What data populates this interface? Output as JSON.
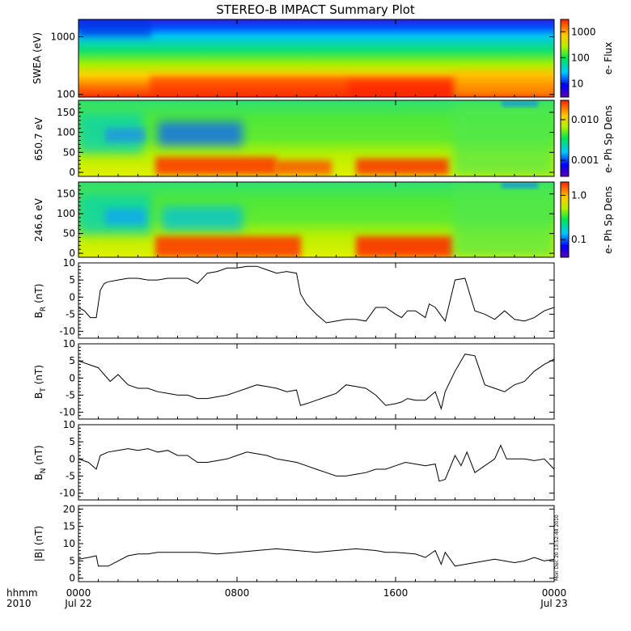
{
  "title": "STEREO-B IMPACT Summary Plot",
  "footer": {
    "time_label": "hhmm",
    "year_label": "2010",
    "timestamp_note": "Mon Dec 20 13:52:48 2010"
  },
  "chart_data": [
    {
      "type": "heatmap",
      "panel": "swea",
      "ylabel": "SWEA (eV)",
      "yscale": "log",
      "ylim": [
        90,
        2000
      ],
      "yticks": [
        "1000",
        "100"
      ],
      "colorbar_label": "e- Flux",
      "colorbar_scale": "log",
      "colorbar_ticks": [
        "1000",
        "100",
        "10"
      ]
    },
    {
      "type": "heatmap",
      "panel": "pad650",
      "ylabel": "650.7 eV",
      "ylim": [
        -10,
        180
      ],
      "yticks": [
        "150",
        "100",
        "50",
        "0"
      ],
      "colorbar_label": "e- Ph Sp Dens",
      "colorbar_scale": "log",
      "colorbar_ticks": [
        "0.010",
        "0.001"
      ]
    },
    {
      "type": "heatmap",
      "panel": "pad246",
      "ylabel": "246.6 eV",
      "ylim": [
        -10,
        180
      ],
      "yticks": [
        "150",
        "100",
        "50",
        "0"
      ],
      "colorbar_label": "e- Ph Sp Dens",
      "colorbar_scale": "log",
      "colorbar_ticks": [
        "1.0",
        "0.1"
      ]
    },
    {
      "type": "line",
      "panel": "br",
      "ylabel": "B",
      "ylabel_sub": "R",
      "ylabel_unit": "(nT)",
      "ylim": [
        -12,
        10
      ],
      "yticks": [
        "10",
        "5",
        "0",
        "-5",
        "-10"
      ],
      "series": [
        {
          "x": [
            0,
            0.3,
            0.6,
            0.9,
            1.0,
            1.1,
            1.3,
            1.5,
            2,
            2.5,
            3,
            3.5,
            4,
            4.5,
            5,
            5.5,
            6,
            6.5,
            7,
            7.5,
            8,
            8.5,
            9,
            9.5,
            10,
            10.5,
            11,
            11.2,
            11.5,
            12,
            12.5,
            13,
            13.5,
            14,
            14.5,
            15,
            15.5,
            16,
            16.3,
            16.6,
            17,
            17.5,
            17.7,
            18,
            18.5,
            19,
            19.5,
            20,
            20.5,
            21,
            21.5,
            22,
            22.5,
            23,
            23.5,
            24
          ],
          "y": [
            -3,
            -4,
            -6,
            -6,
            -2,
            2,
            4,
            4.5,
            5,
            5.5,
            5.5,
            5,
            5,
            5.5,
            5.5,
            5.5,
            4,
            7,
            7.5,
            8.5,
            8.5,
            9,
            9,
            8,
            7,
            7.5,
            7,
            1,
            -2,
            -5,
            -7.5,
            -7,
            -6.5,
            -6.5,
            -7,
            -3,
            -3,
            -5,
            -6,
            -4,
            -4,
            -6,
            -2,
            -3,
            -7,
            5,
            5.5,
            -4,
            -5,
            -6.5,
            -4,
            -6.5,
            -7,
            -6,
            -4,
            -3
          ]
        }
      ]
    },
    {
      "type": "line",
      "panel": "bt",
      "ylabel": "B",
      "ylabel_sub": "T",
      "ylabel_unit": "(nT)",
      "ylim": [
        -12,
        10
      ],
      "yticks": [
        "10",
        "5",
        "0",
        "-5",
        "-10"
      ],
      "series": [
        {
          "x": [
            0,
            0.5,
            1,
            1.3,
            1.6,
            2,
            2.5,
            3,
            3.5,
            4,
            4.5,
            5,
            5.5,
            6,
            6.5,
            7,
            7.5,
            8,
            8.5,
            9,
            9.5,
            10,
            10.5,
            11,
            11.2,
            11.5,
            12,
            12.5,
            13,
            13.5,
            14,
            14.5,
            15,
            15.5,
            16,
            16.3,
            16.6,
            17,
            17.5,
            18,
            18.3,
            18.5,
            19,
            19.5,
            20,
            20.5,
            21,
            21.5,
            22,
            22.5,
            23,
            23.5,
            24
          ],
          "y": [
            5,
            4,
            3,
            1,
            -1,
            1,
            -2,
            -3,
            -3,
            -4,
            -4.5,
            -5,
            -5,
            -6,
            -6,
            -5.5,
            -5,
            -4,
            -3,
            -2,
            -2.5,
            -3,
            -4,
            -3.5,
            -8,
            -7.5,
            -6.5,
            -5.5,
            -4.5,
            -2,
            -2.5,
            -3,
            -5,
            -8,
            -7.5,
            -7,
            -6,
            -6.5,
            -6.5,
            -4,
            -9,
            -4,
            2,
            7,
            6.5,
            -2,
            -3,
            -4,
            -2,
            -1,
            2,
            4,
            5.5
          ]
        }
      ]
    },
    {
      "type": "line",
      "panel": "bn",
      "ylabel": "B",
      "ylabel_sub": "N",
      "ylabel_unit": "(nT)",
      "ylim": [
        -12,
        10
      ],
      "yticks": [
        "10",
        "5",
        "0",
        "-5",
        "-10"
      ],
      "series": [
        {
          "x": [
            0,
            0.5,
            0.9,
            1.1,
            1.5,
            2,
            2.5,
            3,
            3.5,
            4,
            4.5,
            5,
            5.5,
            6,
            6.5,
            7,
            7.5,
            8,
            8.5,
            9,
            9.5,
            10,
            10.5,
            11,
            11.5,
            12,
            12.5,
            13,
            13.5,
            14,
            14.5,
            15,
            15.5,
            16,
            16.5,
            17,
            17.5,
            18,
            18.2,
            18.5,
            19,
            19.3,
            19.6,
            20,
            20.5,
            21,
            21.3,
            21.6,
            22,
            22.5,
            23,
            23.5,
            24
          ],
          "y": [
            0,
            -1,
            -3,
            1,
            2,
            2.5,
            3,
            2.5,
            3,
            2,
            2.5,
            1,
            1,
            -1,
            -1,
            -0.5,
            0,
            1,
            2,
            1.5,
            1,
            0,
            -0.5,
            -1,
            -2,
            -3,
            -4,
            -5,
            -5,
            -4.5,
            -4,
            -3,
            -3,
            -2,
            -1,
            -1.5,
            -2,
            -1.5,
            -6.5,
            -6,
            1,
            -2,
            2,
            -4,
            -2,
            0,
            4,
            0,
            0,
            0,
            -0.5,
            0,
            -3
          ]
        }
      ]
    },
    {
      "type": "line",
      "panel": "bmag",
      "ylabel": "|B| (nT)",
      "ylim": [
        -1,
        21
      ],
      "yticks": [
        "20",
        "15",
        "10",
        "5",
        "0"
      ],
      "xticks": [
        {
          "line1": "0000",
          "line2": "Jul 22"
        },
        {
          "line1": "0800",
          "line2": ""
        },
        {
          "line1": "1600",
          "line2": ""
        },
        {
          "line1": "0000",
          "line2": "Jul 23"
        }
      ],
      "xlim": [
        0,
        24
      ],
      "series": [
        {
          "x": [
            0,
            0.5,
            0.9,
            1,
            1.5,
            2,
            2.5,
            3,
            3.5,
            4,
            5,
            6,
            7,
            8,
            9,
            10,
            11,
            12,
            13,
            14,
            15,
            15.5,
            16,
            17,
            17.5,
            18,
            18.3,
            18.5,
            19,
            19.5,
            20,
            20.5,
            21,
            21.5,
            22,
            22.5,
            23,
            23.5,
            24
          ],
          "y": [
            5.5,
            6,
            6.5,
            3.5,
            3.5,
            5,
            6.5,
            7,
            7,
            7.5,
            7.5,
            7.5,
            7,
            7.5,
            8,
            8.5,
            8,
            7.5,
            8,
            8.5,
            8,
            7.5,
            7.5,
            7,
            6,
            8,
            4,
            7.5,
            3.5,
            4,
            4.5,
            5,
            5.5,
            5,
            4.5,
            5,
            6,
            5,
            5.5
          ]
        }
      ]
    }
  ]
}
